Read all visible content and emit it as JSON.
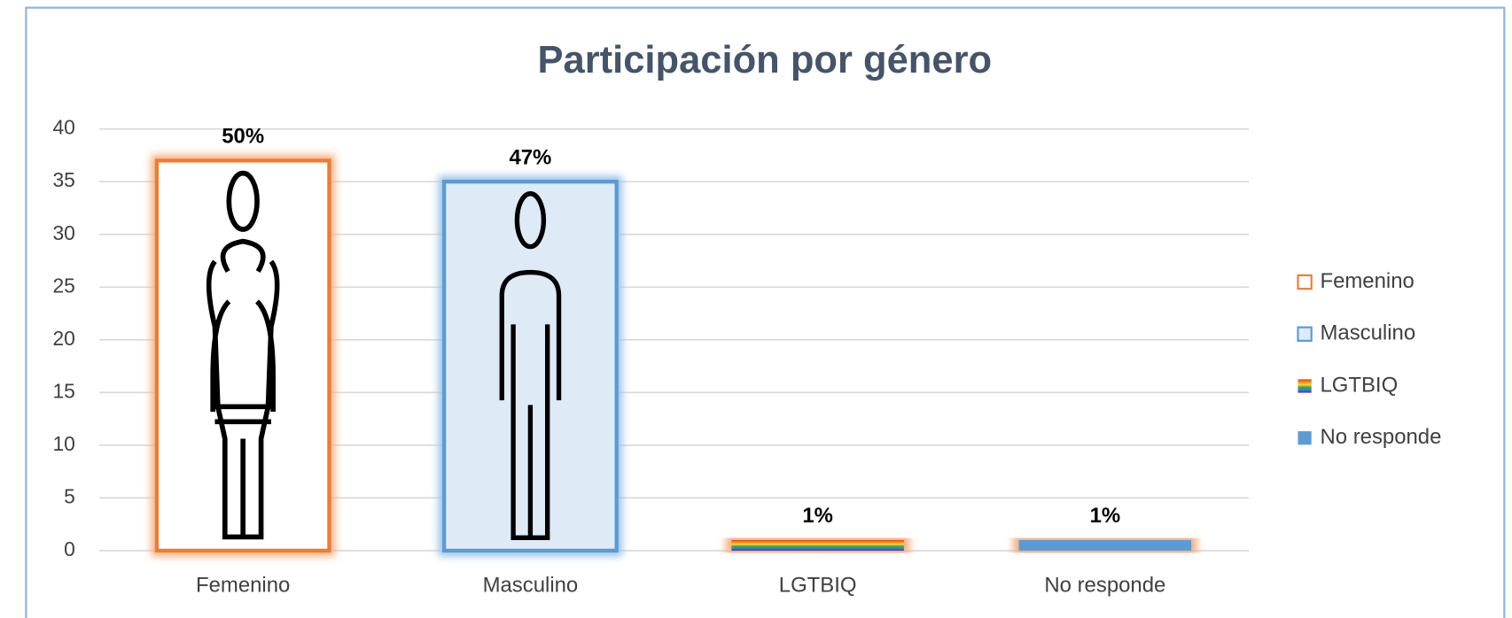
{
  "chart_data": {
    "type": "bar",
    "title": "Participación por género",
    "categories": [
      "Femenino",
      "Masculino",
      "LGTBIQ",
      "No responde"
    ],
    "series": [
      {
        "name": "Femenino",
        "color": "#ed7d31",
        "values": [
          37,
          null,
          null,
          null
        ]
      },
      {
        "name": "Masculino",
        "color": "#5b9bd5",
        "values": [
          null,
          35,
          null,
          null
        ]
      },
      {
        "name": "LGTBIQ",
        "color": "#7030a0",
        "values": [
          null,
          null,
          1,
          null
        ]
      },
      {
        "name": "No responde",
        "color": "#5b9bd5",
        "values": [
          null,
          null,
          null,
          1
        ]
      }
    ],
    "data_labels": [
      "50%",
      "47%",
      "1%",
      "1%"
    ],
    "ylim": [
      0,
      40
    ],
    "yticks": [
      0,
      5,
      10,
      15,
      20,
      25,
      30,
      35,
      40
    ],
    "grid": true,
    "legend": "right"
  }
}
